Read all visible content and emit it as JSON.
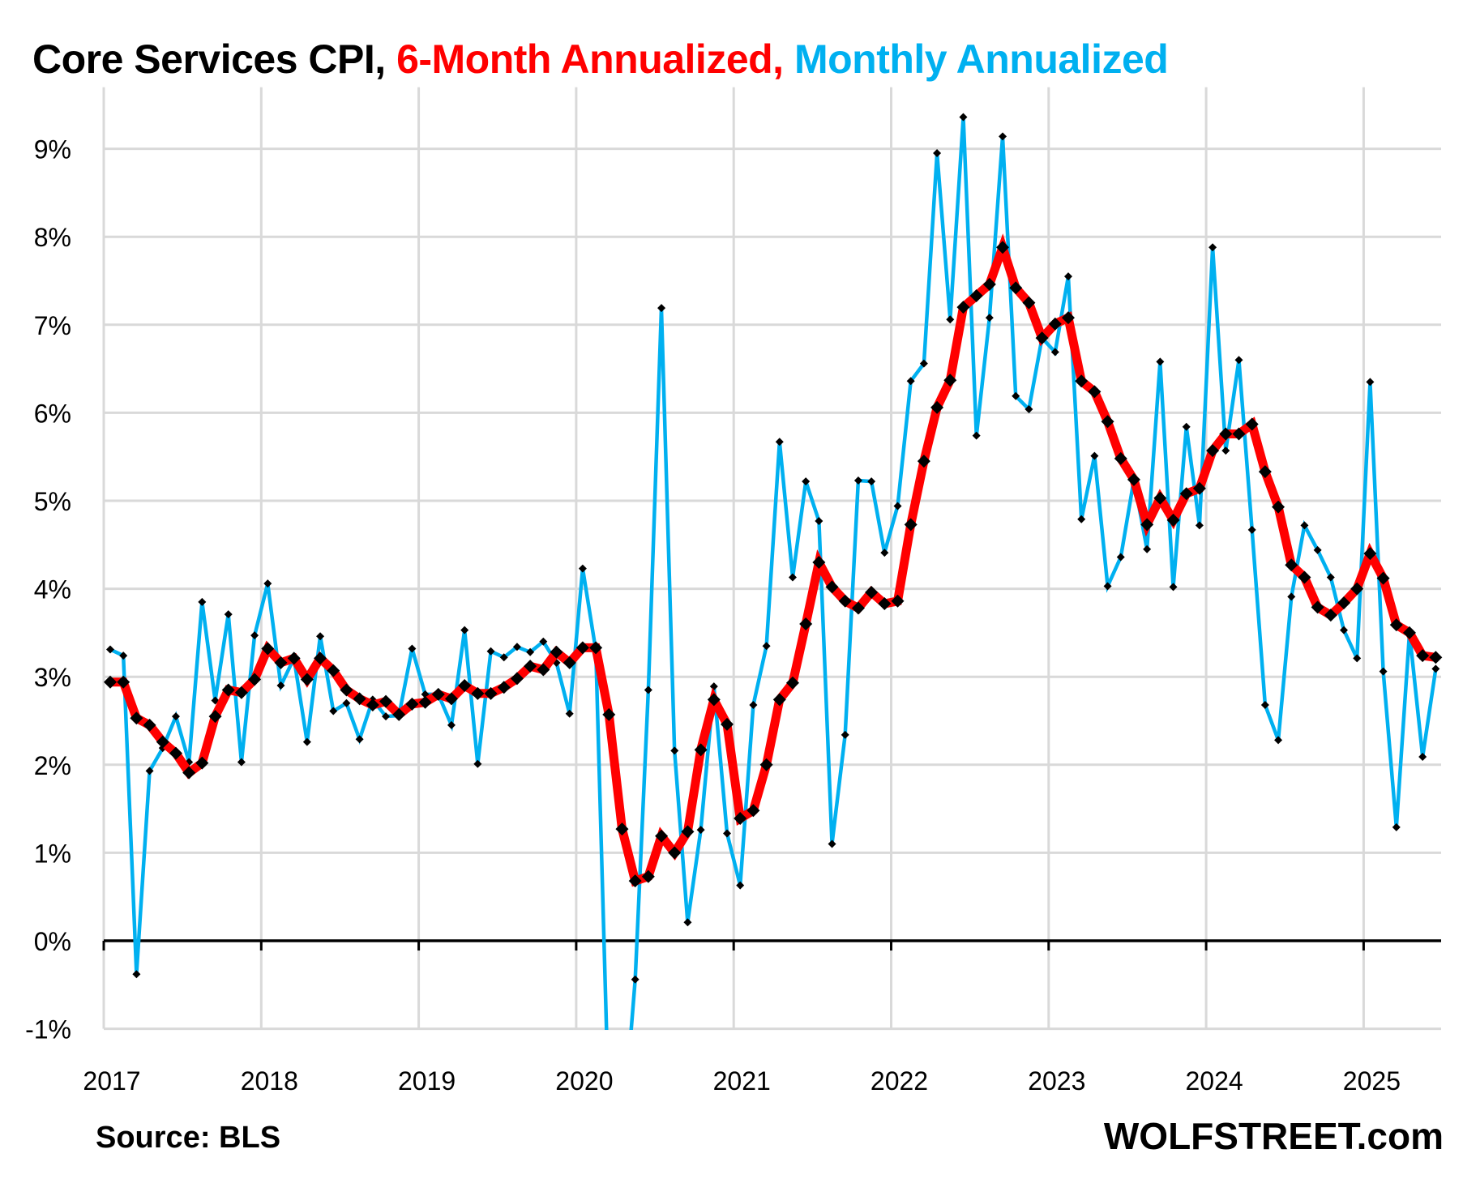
{
  "title": {
    "part1": "Core Services CPI, ",
    "part2": "6-Month Annualized, ",
    "part3": "Monthly Annualized",
    "colors": {
      "part1": "#000000",
      "part2": "#ff0000",
      "part3": "#00b0f0"
    }
  },
  "footer": {
    "source": "Source: BLS",
    "brand": "WOLFSTREET.com"
  },
  "chart_data": {
    "type": "line",
    "title": "Core Services CPI, 6-Month Annualized, Monthly Annualized",
    "xlabel": "",
    "ylabel": "",
    "ylim": [
      -1,
      9.7
    ],
    "yticks": [
      -1,
      0,
      1,
      2,
      3,
      4,
      5,
      6,
      7,
      8,
      9
    ],
    "ytick_labels": [
      "-1%",
      "0%",
      "1%",
      "2%",
      "3%",
      "4%",
      "5%",
      "6%",
      "7%",
      "8%",
      "9%"
    ],
    "xtick_labels": [
      "2017",
      "2018",
      "2019",
      "2020",
      "2021",
      "2022",
      "2023",
      "2024",
      "2025"
    ],
    "x_start": "2017-01",
    "x_end": "2025-06",
    "frequency": "monthly",
    "grid": true,
    "legend": "in title",
    "series": [
      {
        "name": "Monthly Annualized",
        "color": "#00b0f0",
        "marker": "diamond",
        "values": [
          3.31,
          3.24,
          -0.38,
          1.93,
          2.19,
          2.55,
          2.03,
          3.85,
          2.73,
          3.71,
          2.03,
          3.47,
          4.06,
          2.9,
          3.21,
          2.26,
          3.46,
          2.61,
          2.7,
          2.29,
          2.74,
          2.55,
          2.56,
          3.32,
          2.8,
          2.8,
          2.45,
          3.53,
          2.01,
          3.29,
          3.22,
          3.34,
          3.28,
          3.4,
          3.16,
          2.58,
          4.23,
          3.3,
          -2.0,
          -2.3,
          -0.44,
          2.85,
          7.19,
          2.16,
          0.21,
          1.26,
          2.89,
          1.22,
          0.63,
          2.68,
          3.35,
          5.67,
          4.13,
          5.22,
          4.77,
          1.1,
          2.34,
          5.23,
          5.22,
          4.41,
          4.94,
          6.36,
          6.56,
          8.95,
          7.06,
          9.36,
          5.74,
          7.08,
          9.14,
          6.19,
          6.04,
          6.85,
          6.69,
          7.55,
          4.79,
          5.51,
          4.03,
          4.36,
          5.24,
          4.45,
          6.58,
          4.02,
          5.84,
          4.72,
          7.88,
          5.57,
          6.6,
          4.67,
          2.68,
          2.28,
          3.91,
          4.72,
          4.44,
          4.13,
          3.53,
          3.21,
          6.35,
          3.06,
          1.29,
          3.5,
          2.09,
          3.09
        ]
      },
      {
        "name": "6-Month Annualized",
        "color": "#ff0000",
        "marker": "diamond",
        "values": [
          2.94,
          2.94,
          2.53,
          2.45,
          2.26,
          2.13,
          1.91,
          2.02,
          2.55,
          2.85,
          2.82,
          2.97,
          3.32,
          3.16,
          3.21,
          2.97,
          3.21,
          3.07,
          2.85,
          2.75,
          2.68,
          2.72,
          2.57,
          2.69,
          2.71,
          2.8,
          2.75,
          2.9,
          2.81,
          2.81,
          2.88,
          2.98,
          3.12,
          3.08,
          3.28,
          3.16,
          3.33,
          3.33,
          2.57,
          1.27,
          0.68,
          0.73,
          1.19,
          1.0,
          1.24,
          2.17,
          2.74,
          2.46,
          1.39,
          1.48,
          2.0,
          2.74,
          2.93,
          3.6,
          4.3,
          4.02,
          3.86,
          3.78,
          3.96,
          3.83,
          3.86,
          4.73,
          5.45,
          6.06,
          6.37,
          7.2,
          7.33,
          7.46,
          7.88,
          7.42,
          7.25,
          6.85,
          7.01,
          7.08,
          6.36,
          6.24,
          5.9,
          5.48,
          5.24,
          4.73,
          5.03,
          4.78,
          5.08,
          5.14,
          5.57,
          5.76,
          5.76,
          5.87,
          5.33,
          4.93,
          4.27,
          4.13,
          3.79,
          3.7,
          3.84,
          4.0,
          4.4,
          4.12,
          3.59,
          3.5,
          3.24,
          3.22
        ]
      }
    ]
  }
}
